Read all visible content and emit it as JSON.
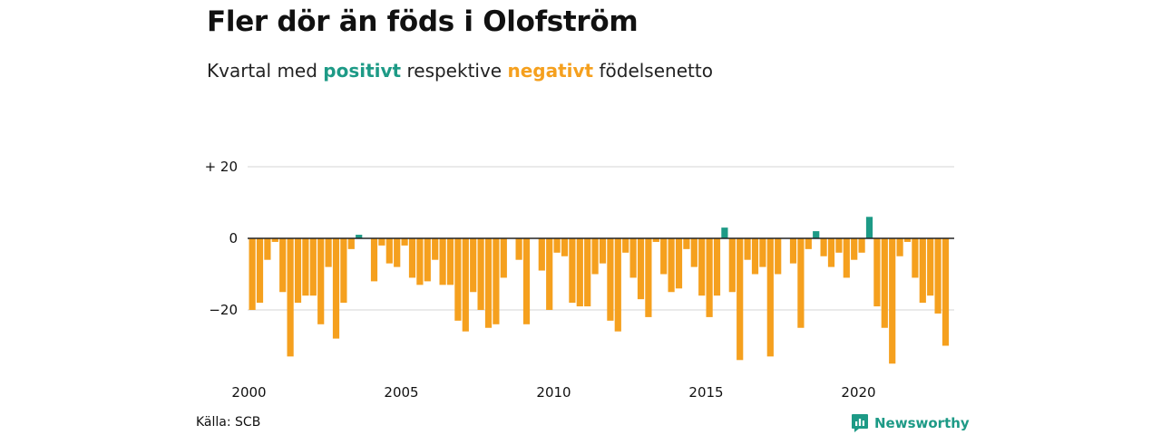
{
  "title": "Fler dör än föds i Olofström",
  "subtitle": {
    "prefix": "Kvartal med ",
    "positive_word": "positivt",
    "middle": " respektive ",
    "negative_word": "negativt",
    "suffix": " födelsenetto"
  },
  "source": "Källa: SCB",
  "brand": "Newsworthy",
  "colors": {
    "positive": "#1d9a86",
    "negative": "#f5a01e",
    "grid": "#dddddd",
    "zero": "#222222"
  },
  "chart_data": {
    "type": "bar",
    "x_start_year": 2000,
    "periods_per_year": 4,
    "y_ticks": [
      20,
      0,
      -20
    ],
    "y_tick_labels": [
      "+ 20",
      "0",
      "−20"
    ],
    "x_ticks": [
      "2000",
      "2005",
      "2010",
      "2015",
      "2020"
    ],
    "ylim": [
      -37,
      22
    ],
    "grid": true,
    "values": [
      -20,
      -18,
      -6,
      -1,
      -15,
      -33,
      -18,
      -16,
      -16,
      -24,
      -8,
      -28,
      -18,
      -3,
      1,
      0,
      -12,
      -2,
      -7,
      -8,
      -2,
      -11,
      -13,
      -12,
      -6,
      -13,
      -13,
      -23,
      -26,
      -15,
      -20,
      -25,
      -24,
      -11,
      0,
      -6,
      -24,
      0,
      -9,
      -20,
      -4,
      -5,
      -18,
      -19,
      -19,
      -10,
      -7,
      -23,
      -26,
      -4,
      -11,
      -17,
      -22,
      -1,
      -10,
      -15,
      -14,
      -3,
      -8,
      -16,
      -22,
      -16,
      3,
      -15,
      -34,
      -6,
      -10,
      -8,
      -33,
      -10,
      0,
      -7,
      -25,
      -3,
      2,
      -5,
      -8,
      -4,
      -11,
      -6,
      -4,
      6,
      -19,
      -25,
      -35,
      -5,
      -1,
      -11,
      -18,
      -16,
      -21,
      -30
    ]
  }
}
